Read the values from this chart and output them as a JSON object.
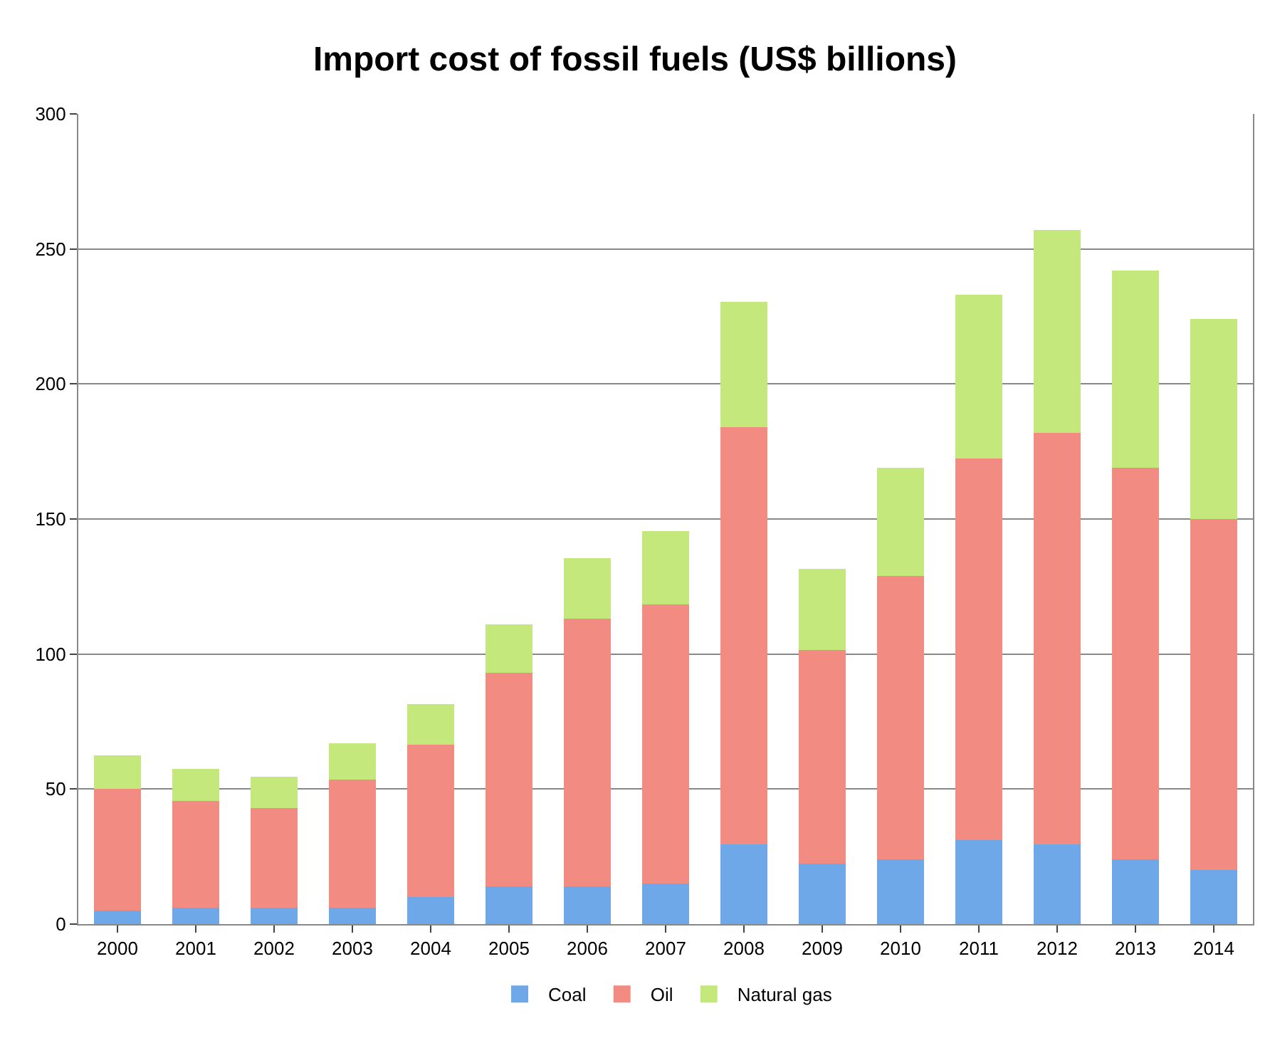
{
  "chart_data": {
    "type": "bar",
    "title": "Import cost of fossil fuels (US$ billions)",
    "categories": [
      "2000",
      "2001",
      "2002",
      "2003",
      "2004",
      "2005",
      "2006",
      "2007",
      "2008",
      "2009",
      "2010",
      "2011",
      "2012",
      "2013",
      "2014"
    ],
    "stacked": true,
    "series": [
      {
        "name": "Coal",
        "color": "#6fa8e8",
        "values": [
          5,
          6,
          6,
          6,
          10,
          14,
          14,
          15,
          29.5,
          22.5,
          24,
          31,
          29.5,
          24,
          20
        ]
      },
      {
        "name": "Oil",
        "color": "#f28b82",
        "values": [
          45,
          39.5,
          37,
          47.5,
          56.5,
          79,
          99,
          103.5,
          154.5,
          79,
          105,
          141.5,
          152.5,
          145,
          130
        ]
      },
      {
        "name": "Natural gas",
        "color": "#c4e87c",
        "values": [
          12.5,
          12,
          11.5,
          13.5,
          15,
          18,
          22.5,
          27,
          46.5,
          30,
          40,
          60.5,
          75,
          73,
          74
        ]
      }
    ],
    "ylim": [
      0,
      300
    ],
    "yticks": [
      0,
      50,
      100,
      150,
      200,
      250,
      300
    ],
    "grid": "y",
    "legend": "bottom"
  }
}
